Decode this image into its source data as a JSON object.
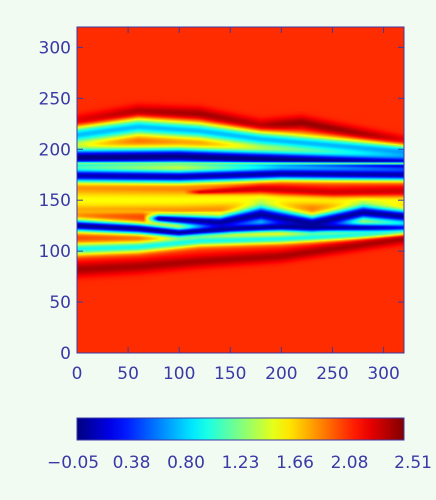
{
  "chart_data": {
    "type": "heatmap",
    "title": "",
    "xlabel": "",
    "ylabel": "",
    "xlim": [
      0,
      320
    ],
    "ylim": [
      0,
      320
    ],
    "x_ticks": [
      0,
      50,
      100,
      150,
      200,
      250,
      300
    ],
    "y_ticks": [
      0,
      50,
      100,
      150,
      200,
      250,
      300
    ],
    "x_tick_labels": [
      "0",
      "50",
      "100",
      "150",
      "200",
      "250",
      "300"
    ],
    "y_tick_labels": [
      "0",
      "50",
      "100",
      "150",
      "200",
      "250",
      "300"
    ],
    "colormap": "jet",
    "background_value": 2.08,
    "colorbar": {
      "orientation": "horizontal",
      "min": -0.05,
      "max": 2.51,
      "tick_labels": [
        "−0.05",
        "0.38",
        "0.80",
        "1.23",
        "1.66",
        "2.08",
        "2.51"
      ]
    },
    "bands": [
      {
        "center": [
          [
            0,
            225
          ],
          [
            60,
            236
          ],
          [
            120,
            234
          ],
          [
            180,
            222
          ],
          [
            220,
            226
          ],
          [
            320,
            206
          ]
        ],
        "width": [
          [
            0,
            7
          ],
          [
            320,
            6
          ]
        ],
        "value": 2.45
      },
      {
        "center": [
          [
            0,
            214
          ],
          [
            60,
            222
          ],
          [
            120,
            218
          ],
          [
            180,
            210
          ],
          [
            320,
            198
          ]
        ],
        "width": [
          [
            0,
            9
          ],
          [
            320,
            7
          ]
        ],
        "value": 0.75
      },
      {
        "center": [
          [
            0,
            192
          ],
          [
            100,
            193
          ],
          [
            200,
            190
          ],
          [
            320,
            186
          ]
        ],
        "width": [
          [
            0,
            9
          ],
          [
            320,
            8
          ]
        ],
        "value": -0.05
      },
      {
        "center": [
          [
            0,
            186
          ],
          [
            320,
            186
          ]
        ],
        "width": [
          [
            0,
            1.3
          ],
          [
            320,
            1.3
          ]
        ],
        "value": 1.3
      },
      {
        "center": [
          [
            0,
            174
          ],
          [
            100,
            173
          ],
          [
            200,
            176
          ],
          [
            320,
            175
          ]
        ],
        "width": [
          [
            0,
            7
          ],
          [
            320,
            6
          ]
        ],
        "value": 0.05
      },
      {
        "center": [
          [
            0,
            150
          ],
          [
            100,
            150
          ],
          [
            200,
            152
          ],
          [
            320,
            150
          ]
        ],
        "width": [
          [
            0,
            12
          ],
          [
            320,
            7
          ]
        ],
        "value": 1.55
      },
      {
        "center": [
          [
            120,
            158
          ],
          [
            180,
            161
          ],
          [
            250,
            158
          ],
          [
            320,
            159
          ]
        ],
        "width": [
          [
            120,
            2
          ],
          [
            200,
            5
          ],
          [
            320,
            5
          ]
        ],
        "value": 2.3
      },
      {
        "center": [
          [
            0,
            139
          ],
          [
            60,
            139
          ],
          [
            100,
            137
          ],
          [
            140,
            138
          ]
        ],
        "width": [
          [
            0,
            3
          ],
          [
            140,
            1
          ]
        ],
        "value": 1.75
      },
      {
        "center": [
          [
            80,
            132
          ],
          [
            140,
            128
          ],
          [
            180,
            136
          ],
          [
            230,
            127
          ],
          [
            280,
            138
          ],
          [
            320,
            134
          ]
        ],
        "width": [
          [
            80,
            4
          ],
          [
            180,
            9
          ],
          [
            320,
            7
          ]
        ],
        "value": 0.02
      },
      {
        "center": [
          [
            0,
            125
          ],
          [
            60,
            122
          ],
          [
            100,
            118
          ],
          [
            150,
            122
          ],
          [
            200,
            124
          ],
          [
            320,
            122
          ]
        ],
        "width": [
          [
            0,
            6
          ],
          [
            100,
            5
          ],
          [
            320,
            5
          ]
        ],
        "value": 0.0
      },
      {
        "center": [
          [
            0,
            102
          ],
          [
            60,
            104
          ],
          [
            120,
            110
          ],
          [
            200,
            112
          ],
          [
            320,
            118
          ]
        ],
        "width": [
          [
            0,
            6
          ],
          [
            320,
            4
          ]
        ],
        "value": 0.95
      },
      {
        "center": [
          [
            0,
            82
          ],
          [
            60,
            85
          ],
          [
            120,
            90
          ],
          [
            200,
            95
          ],
          [
            320,
            112
          ]
        ],
        "width": [
          [
            0,
            7
          ],
          [
            320,
            5
          ]
        ],
        "value": 2.4
      }
    ]
  }
}
